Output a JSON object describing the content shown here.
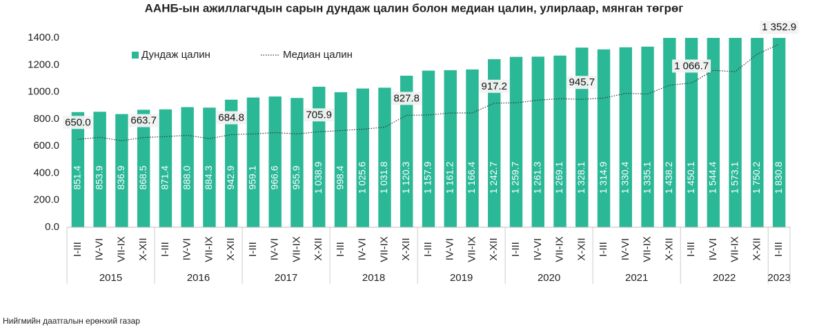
{
  "chart_data": {
    "type": "bar",
    "title": "ААНБ-ын ажиллагчдын сарын дундаж цалин болон медиан цалин, улирлаар, мянган төгрөг",
    "source": "Нийгмийн даатгалын ерөнхий газар",
    "categories": [
      "I-III",
      "IV-VI",
      "VII-IX",
      "X-XII",
      "I-III",
      "IV-VI",
      "VII-IX",
      "X-XII",
      "I-III",
      "IV-VI",
      "VII-IX",
      "X-XII",
      "I-III",
      "IV-VI",
      "VII-IX",
      "X-XII",
      "I-III",
      "IV-VI",
      "VII-IX",
      "X-XII",
      "I-III",
      "IV-VI",
      "VII-IX",
      "X-XII",
      "I-III",
      "IV-VI",
      "VII-IX",
      "X-XII",
      "I-III",
      "IV-VI",
      "VII-IX",
      "X-XII",
      "I-III"
    ],
    "category_years": [
      "2015",
      "2015",
      "2015",
      "2015",
      "2016",
      "2016",
      "2016",
      "2016",
      "2017",
      "2017",
      "2017",
      "2017",
      "2018",
      "2018",
      "2018",
      "2018",
      "2019",
      "2019",
      "2019",
      "2019",
      "2020",
      "2020",
      "2020",
      "2020",
      "2021",
      "2021",
      "2021",
      "2021",
      "2022",
      "2022",
      "2022",
      "2022",
      "2023"
    ],
    "series": [
      {
        "name": "Дундаж цалин",
        "kind": "bar",
        "color": "#2bb897",
        "values": [
          851.4,
          853.9,
          836.9,
          868.5,
          871.4,
          888.0,
          884.3,
          942.9,
          959.1,
          966.6,
          955.9,
          1038.9,
          998.4,
          1025.6,
          1031.8,
          1120.3,
          1157.9,
          1161.2,
          1166.4,
          1242.7,
          1259.7,
          1261.3,
          1269.1,
          1328.1,
          1314.9,
          1330.4,
          1335.1,
          1438.2,
          1450.1,
          1544.4,
          1573.1,
          1750.2,
          1830.8
        ],
        "value_labels": [
          "851.4",
          "853.9",
          "836.9",
          "868.5",
          "871.4",
          "888.0",
          "884.3",
          "942.9",
          "959.1",
          "966.6",
          "955.9",
          "1 038.9",
          "998.4",
          "1 025.6",
          "1 031.8",
          "1 120.3",
          "1 157.9",
          "1 161.2",
          "1 166.4",
          "1 242.7",
          "1 259.7",
          "1 261.3",
          "1 269.1",
          "1 328.1",
          "1 314.9",
          "1 330.4",
          "1 335.1",
          "1 438.2",
          "1 450.1",
          "1 544.4",
          "1 573.1",
          "1 750.2",
          "1 830.8"
        ]
      },
      {
        "name": "Медиан цалин",
        "kind": "line",
        "color": "#333333",
        "values": [
          650.0,
          665,
          640,
          663.7,
          670,
          680,
          655,
          684.8,
          690,
          700,
          690,
          705.9,
          715,
          725,
          740,
          827.8,
          830,
          845,
          845,
          917.2,
          920,
          940,
          950,
          945.7,
          955,
          990,
          985,
          1050,
          1066.7,
          1160,
          1150,
          1280,
          1352.9
        ],
        "value_labels": [
          "650.0",
          null,
          null,
          "663.7",
          null,
          null,
          null,
          "684.8",
          null,
          null,
          null,
          "705.9",
          null,
          null,
          null,
          "827.8",
          null,
          null,
          null,
          "917.2",
          null,
          null,
          null,
          "945.7",
          null,
          null,
          null,
          null,
          "1 066.7",
          null,
          null,
          null,
          "1 352.9"
        ]
      }
    ],
    "ylim": [
      0,
      1400
    ],
    "yticks": [
      {
        "value": 0,
        "label": "0.0"
      },
      {
        "value": 200,
        "label": "200.0"
      },
      {
        "value": 400,
        "label": "400.0"
      },
      {
        "value": 600,
        "label": "600.0"
      },
      {
        "value": 800,
        "label": "800.0"
      },
      {
        "value": 1000,
        "label": "1000.0"
      },
      {
        "value": 1200,
        "label": "1200.0"
      },
      {
        "value": 1400,
        "label": "1400.0"
      }
    ],
    "grid": false
  }
}
